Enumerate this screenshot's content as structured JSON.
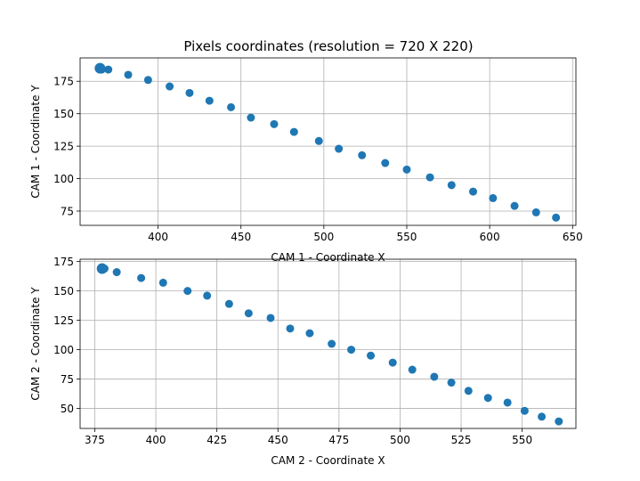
{
  "chart_data": [
    {
      "type": "scatter",
      "title": "Pixels coordinates (resolution = 720 X 220)",
      "xlabel": "CAM 1 - Coordinate X",
      "ylabel": "CAM 1 - Coordinate Y",
      "xlim": [
        353,
        652
      ],
      "ylim": [
        64,
        193
      ],
      "xticks": [
        400,
        450,
        500,
        550,
        600,
        650
      ],
      "yticks": [
        75,
        100,
        125,
        150,
        175
      ],
      "grid": true,
      "color": "#1f77b4",
      "series": [
        {
          "x": [
            365,
            366,
            370,
            382,
            394,
            407,
            419,
            431,
            444,
            456,
            470,
            482,
            497,
            509,
            523,
            537,
            550,
            564,
            577,
            590,
            602,
            615,
            628,
            640
          ],
          "y": [
            185,
            184,
            184,
            180,
            176,
            171,
            166,
            160,
            155,
            147,
            142,
            136,
            129,
            123,
            118,
            112,
            107,
            101,
            95,
            90,
            85,
            79,
            74,
            70
          ]
        }
      ]
    },
    {
      "type": "scatter",
      "title": "",
      "xlabel": "CAM 2 - Coordinate X",
      "ylabel": "CAM 2 - Coordinate Y",
      "xlim": [
        369,
        572
      ],
      "ylim": [
        33,
        177
      ],
      "xticks": [
        375,
        400,
        425,
        450,
        475,
        500,
        525,
        550
      ],
      "yticks": [
        50,
        75,
        100,
        125,
        150,
        175
      ],
      "grid": true,
      "color": "#1f77b4",
      "series": [
        {
          "x": [
            378,
            379,
            384,
            394,
            403,
            413,
            421,
            430,
            438,
            447,
            455,
            463,
            472,
            480,
            488,
            497,
            505,
            514,
            521,
            528,
            536,
            544,
            551,
            558,
            565
          ],
          "y": [
            169,
            169,
            166,
            161,
            157,
            150,
            146,
            139,
            131,
            127,
            118,
            114,
            105,
            100,
            95,
            89,
            83,
            77,
            72,
            65,
            59,
            55,
            48,
            43,
            39
          ]
        }
      ]
    }
  ]
}
